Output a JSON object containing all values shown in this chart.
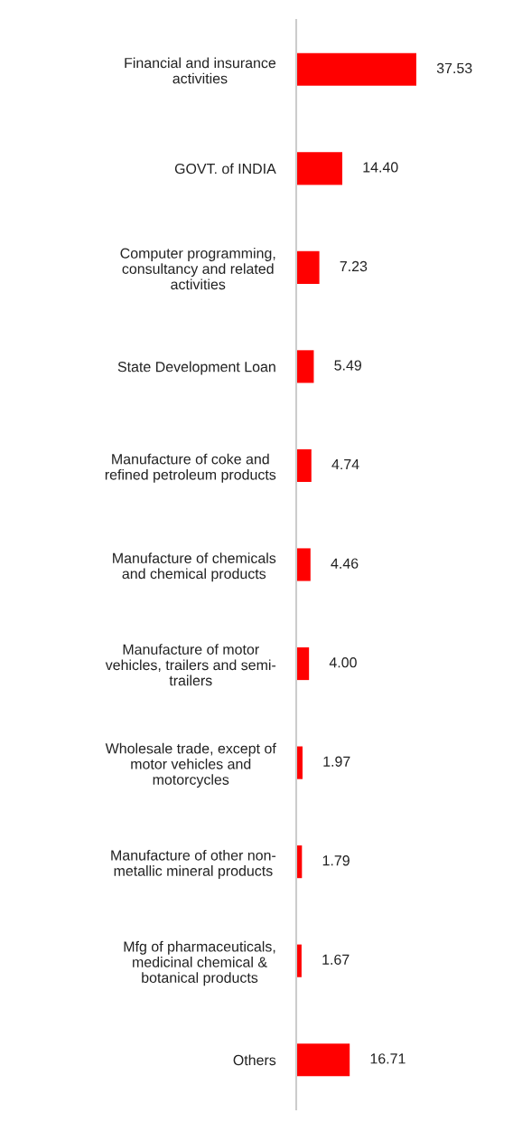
{
  "chart_data": {
    "type": "bar",
    "orientation": "horizontal",
    "categories": [
      "Financial and insurance\nactivities",
      "GOVT. of INDIA",
      "Computer programming,\nconsultancy and related\nactivities",
      "State Development Loan",
      "Manufacture of coke and\nrefined petroleum products",
      "Manufacture of chemicals\nand chemical products",
      "Manufacture of motor\nvehicles, trailers and semi-\ntrailers",
      "Wholesale trade, except of\nmotor vehicles and\nmotorcycles",
      "Manufacture of other non-\nmetallic mineral products",
      "Mfg of pharmaceuticals,\nmedicinal chemical &\nbotanical products",
      "Others"
    ],
    "values": [
      37.53,
      14.4,
      7.23,
      5.49,
      4.74,
      4.46,
      4.0,
      1.97,
      1.79,
      1.67,
      16.71
    ],
    "value_labels": [
      "37.53",
      "14.40",
      "7.23",
      "5.49",
      "4.74",
      "4.46",
      "4.00",
      "1.97",
      "1.79",
      "1.67",
      "16.71"
    ],
    "color": "#ff0000",
    "grid": false,
    "legend": false
  }
}
